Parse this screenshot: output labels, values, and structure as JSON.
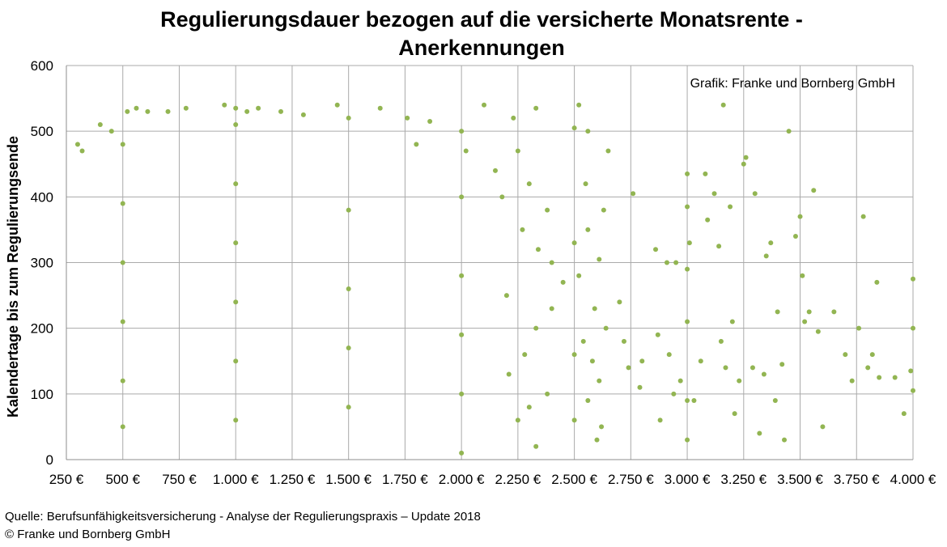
{
  "chart_data": {
    "type": "scatter",
    "title_lines": [
      "Regulierungsdauer bezogen auf die versicherte Monatsrente -",
      "Anerkennungen"
    ],
    "xlabel": "",
    "ylabel": "Kalendertage bis zum Regulierungsende",
    "xlim": [
      250,
      4000
    ],
    "ylim": [
      0,
      600
    ],
    "x_ticks": [
      250,
      500,
      750,
      1000,
      1250,
      1500,
      1750,
      2000,
      2250,
      2500,
      2750,
      3000,
      3250,
      3500,
      3750,
      4000
    ],
    "x_tick_labels": [
      "250 €",
      "500 €",
      "750 €",
      "1.000 €",
      "1.250 €",
      "1.500 €",
      "1.750 €",
      "2.000 €",
      "2.250 €",
      "2.500 €",
      "2.750 €",
      "3.000 €",
      "3.250 €",
      "3.500 €",
      "3.750 €",
      "4.000 €"
    ],
    "y_ticks": [
      0,
      100,
      200,
      300,
      400,
      500,
      600
    ],
    "y_tick_labels": [
      "0",
      "100",
      "200",
      "300",
      "400",
      "500",
      "600"
    ],
    "grid": true,
    "marker_color": "#92b552",
    "annotation": "Grafik: Franke und Bornberg GmbH",
    "points": [
      [
        500,
        50
      ],
      [
        500,
        120
      ],
      [
        500,
        210
      ],
      [
        500,
        300
      ],
      [
        500,
        390
      ],
      [
        500,
        480
      ],
      [
        1000,
        60
      ],
      [
        1000,
        150
      ],
      [
        1000,
        240
      ],
      [
        1000,
        330
      ],
      [
        1000,
        420
      ],
      [
        1000,
        510
      ],
      [
        1000,
        535
      ],
      [
        1500,
        80
      ],
      [
        1500,
        170
      ],
      [
        1500,
        260
      ],
      [
        1500,
        380
      ],
      [
        1500,
        520
      ],
      [
        2000,
        10
      ],
      [
        2000,
        100
      ],
      [
        2000,
        190
      ],
      [
        2000,
        280
      ],
      [
        2000,
        400
      ],
      [
        2000,
        500
      ],
      [
        2500,
        60
      ],
      [
        2500,
        160
      ],
      [
        2500,
        330
      ],
      [
        2500,
        505
      ],
      [
        3000,
        30
      ],
      [
        3000,
        90
      ],
      [
        3000,
        210
      ],
      [
        3000,
        290
      ],
      [
        3000,
        385
      ],
      [
        3000,
        435
      ],
      [
        300,
        480
      ],
      [
        320,
        470
      ],
      [
        400,
        510
      ],
      [
        450,
        500
      ],
      [
        520,
        530
      ],
      [
        560,
        535
      ],
      [
        610,
        530
      ],
      [
        700,
        530
      ],
      [
        780,
        535
      ],
      [
        950,
        540
      ],
      [
        1050,
        530
      ],
      [
        1100,
        535
      ],
      [
        1200,
        530
      ],
      [
        1300,
        525
      ],
      [
        1450,
        540
      ],
      [
        1640,
        535
      ],
      [
        1760,
        520
      ],
      [
        1860,
        515
      ],
      [
        2100,
        540
      ],
      [
        2230,
        520
      ],
      [
        2330,
        535
      ],
      [
        2520,
        540
      ],
      [
        2560,
        500
      ],
      [
        2250,
        470
      ],
      [
        2020,
        470
      ],
      [
        1800,
        480
      ],
      [
        2150,
        440
      ],
      [
        2300,
        420
      ],
      [
        2180,
        400
      ],
      [
        2380,
        380
      ],
      [
        2270,
        350
      ],
      [
        2340,
        320
      ],
      [
        2400,
        300
      ],
      [
        2450,
        270
      ],
      [
        2200,
        250
      ],
      [
        2400,
        230
      ],
      [
        2330,
        200
      ],
      [
        2280,
        160
      ],
      [
        2210,
        130
      ],
      [
        2380,
        100
      ],
      [
        2300,
        80
      ],
      [
        2250,
        60
      ],
      [
        2330,
        20
      ],
      [
        2600,
        30
      ],
      [
        2620,
        50
      ],
      [
        2560,
        90
      ],
      [
        2610,
        120
      ],
      [
        2580,
        150
      ],
      [
        2540,
        180
      ],
      [
        2640,
        200
      ],
      [
        2590,
        230
      ],
      [
        2520,
        280
      ],
      [
        2610,
        305
      ],
      [
        2560,
        350
      ],
      [
        2630,
        380
      ],
      [
        2550,
        420
      ],
      [
        2650,
        470
      ],
      [
        2700,
        240
      ],
      [
        2720,
        180
      ],
      [
        2740,
        140
      ],
      [
        2760,
        405
      ],
      [
        2790,
        110
      ],
      [
        2800,
        150
      ],
      [
        2860,
        320
      ],
      [
        2870,
        190
      ],
      [
        2880,
        60
      ],
      [
        2910,
        300
      ],
      [
        2920,
        160
      ],
      [
        2950,
        300
      ],
      [
        2940,
        100
      ],
      [
        2970,
        120
      ],
      [
        3010,
        330
      ],
      [
        3030,
        90
      ],
      [
        3060,
        150
      ],
      [
        3080,
        435
      ],
      [
        3090,
        365
      ],
      [
        3120,
        405
      ],
      [
        3140,
        325
      ],
      [
        3150,
        180
      ],
      [
        3160,
        540
      ],
      [
        3170,
        140
      ],
      [
        3190,
        385
      ],
      [
        3200,
        210
      ],
      [
        3210,
        70
      ],
      [
        3230,
        120
      ],
      [
        3250,
        450
      ],
      [
        3260,
        460
      ],
      [
        3290,
        140
      ],
      [
        3300,
        405
      ],
      [
        3320,
        40
      ],
      [
        3340,
        130
      ],
      [
        3350,
        310
      ],
      [
        3370,
        330
      ],
      [
        3390,
        90
      ],
      [
        3400,
        225
      ],
      [
        3420,
        145
      ],
      [
        3430,
        30
      ],
      [
        3450,
        500
      ],
      [
        3480,
        340
      ],
      [
        3500,
        370
      ],
      [
        3510,
        280
      ],
      [
        3520,
        210
      ],
      [
        3540,
        225
      ],
      [
        3560,
        410
      ],
      [
        3580,
        195
      ],
      [
        3600,
        50
      ],
      [
        3650,
        225
      ],
      [
        3700,
        160
      ],
      [
        3730,
        120
      ],
      [
        3760,
        200
      ],
      [
        3780,
        370
      ],
      [
        3800,
        140
      ],
      [
        3820,
        160
      ],
      [
        3840,
        270
      ],
      [
        3850,
        125
      ],
      [
        3920,
        125
      ],
      [
        3960,
        70
      ],
      [
        3990,
        135
      ],
      [
        4000,
        200
      ],
      [
        4000,
        275
      ],
      [
        4000,
        105
      ]
    ]
  },
  "footer": {
    "source": "Quelle: Berufsunfähigkeitsversicherung - Analyse der Regulierungspraxis – Update 2018",
    "copyright": "© Franke und Bornberg GmbH"
  }
}
